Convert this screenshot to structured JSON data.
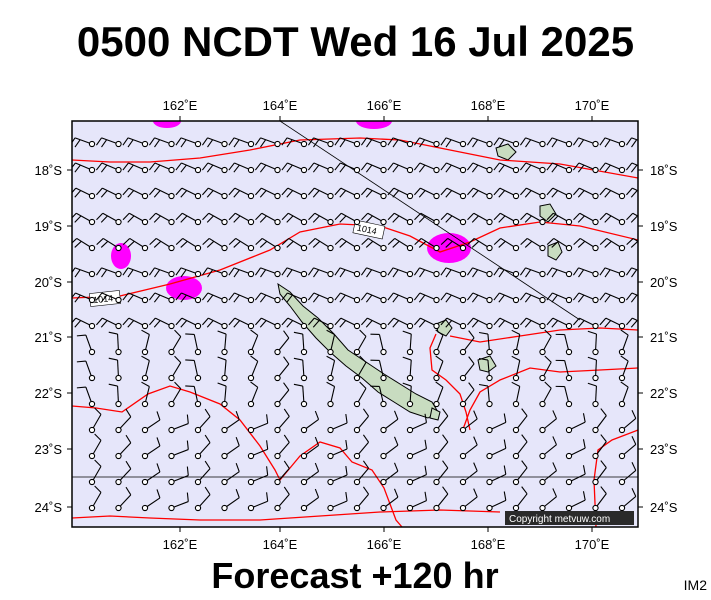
{
  "header": {
    "title": "0500 NCDT Wed 16 Jul 2025"
  },
  "footer": {
    "title": "Forecast +120 hr",
    "image_code": "IM2"
  },
  "map": {
    "background_color": "#e6e6fa",
    "land_color": "#c8dcc0",
    "isobar_color": "#ff0000",
    "precip_color": "#ff00ff",
    "lon_labels": [
      "162˚E",
      "164˚E",
      "166˚E",
      "168˚E",
      "170˚E"
    ],
    "lon_values": [
      162,
      164,
      166,
      168,
      170
    ],
    "lat_labels": [
      "18˚S",
      "19˚S",
      "20˚S",
      "21˚S",
      "22˚S",
      "23˚S",
      "24˚S"
    ],
    "lat_values": [
      -18,
      -19,
      -20,
      -21,
      -22,
      -23,
      -24
    ],
    "lon_range": [
      160,
      171
    ],
    "lat_range": [
      -17.1,
      -24.4
    ],
    "isobar_labels": [
      "1014",
      "1014"
    ],
    "copyright": "Copyright metvuw.com"
  }
}
